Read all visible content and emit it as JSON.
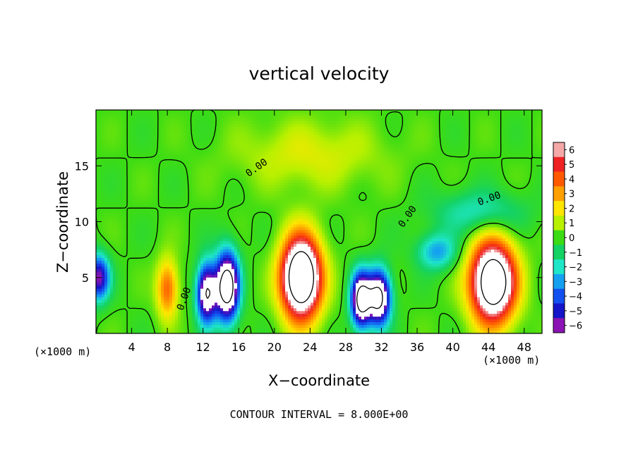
{
  "chart_data": {
    "type": "heatmap",
    "title": "vertical velocity",
    "xlabel": "X−coordinate",
    "ylabel": "Z−coordinate",
    "x_unit_left": "(×1000 m)",
    "x_unit_right": "(×1000 m)",
    "footer": "CONTOUR INTERVAL = 8.000E+00",
    "xlim": [
      0,
      50
    ],
    "ylim": [
      0,
      20
    ],
    "x_ticks": [
      4,
      8,
      12,
      16,
      20,
      24,
      28,
      32,
      36,
      40,
      44,
      48
    ],
    "x_tick_labels": [
      "4",
      "8",
      "12",
      "16",
      "20",
      "24",
      "28",
      "32",
      "36",
      "40",
      "44",
      "48"
    ],
    "y_ticks": [
      5,
      10,
      15
    ],
    "y_tick_labels": [
      "5",
      "10",
      "15"
    ],
    "colorbar": {
      "min": -6,
      "max": 6,
      "levels": [
        6,
        5,
        4,
        3,
        2,
        1,
        0,
        -1,
        -2,
        -3,
        -4,
        -5,
        -6
      ],
      "labels": [
        "6",
        "5",
        "4",
        "3",
        "2",
        "1",
        "0",
        "−1",
        "−2",
        "−3",
        "−4",
        "−5",
        "−6"
      ],
      "colors": [
        "#f4a8a8",
        "#ee2222",
        "#ff5a00",
        "#ffa000",
        "#ffe600",
        "#b8f000",
        "#3cdc14",
        "#14d264",
        "#1ee6c8",
        "#14a0f0",
        "#1450f0",
        "#1414c8",
        "#8c14b4"
      ]
    },
    "contour_labels": [
      {
        "text": "0.00",
        "x": 18.2,
        "y": 14.6,
        "angle": -35
      },
      {
        "text": "0.00",
        "x": 35.2,
        "y": 10.3,
        "angle": -55
      },
      {
        "text": "0.00",
        "x": 44.2,
        "y": 11.8,
        "angle": -20
      },
      {
        "text": "0.00",
        "x": 10.2,
        "y": 3.0,
        "angle": -70
      }
    ],
    "features": [
      {
        "x": 23.0,
        "y": 5.0,
        "amp": 12,
        "sx": 2.2,
        "sy": 3.6,
        "label": "updraft"
      },
      {
        "x": 44.5,
        "y": 4.6,
        "amp": 11,
        "sx": 2.5,
        "sy": 3.6,
        "label": "updraft"
      },
      {
        "x": 8.0,
        "y": 4.0,
        "amp": 4,
        "sx": 1.2,
        "sy": 2.6,
        "label": "updraft"
      },
      {
        "x": 14.7,
        "y": 4.2,
        "amp": -10,
        "sx": 1.3,
        "sy": 3.0,
        "label": "downdraft"
      },
      {
        "x": 12.4,
        "y": 3.6,
        "amp": -8,
        "sx": 1.1,
        "sy": 2.6,
        "label": "downdraft"
      },
      {
        "x": 29.7,
        "y": 3.0,
        "amp": -9,
        "sx": 1.1,
        "sy": 2.4,
        "label": "downdraft"
      },
      {
        "x": 31.7,
        "y": 3.2,
        "amp": -9,
        "sx": 1.3,
        "sy": 2.4,
        "label": "downdraft"
      },
      {
        "x": 0.3,
        "y": 5.0,
        "amp": -6,
        "sx": 1.2,
        "sy": 2.0,
        "label": "downdraft"
      },
      {
        "x": 38.2,
        "y": 7.3,
        "amp": -3,
        "sx": 2.2,
        "sy": 1.6,
        "label": "downdraft"
      },
      {
        "x": 43.0,
        "y": 10.8,
        "amp": -2,
        "sx": 5.0,
        "sy": 2.0,
        "label": "downdraft"
      },
      {
        "x": 24.0,
        "y": 16.0,
        "amp": 1.5,
        "sx": 8.0,
        "sy": 3.0,
        "label": "updraft"
      }
    ]
  }
}
